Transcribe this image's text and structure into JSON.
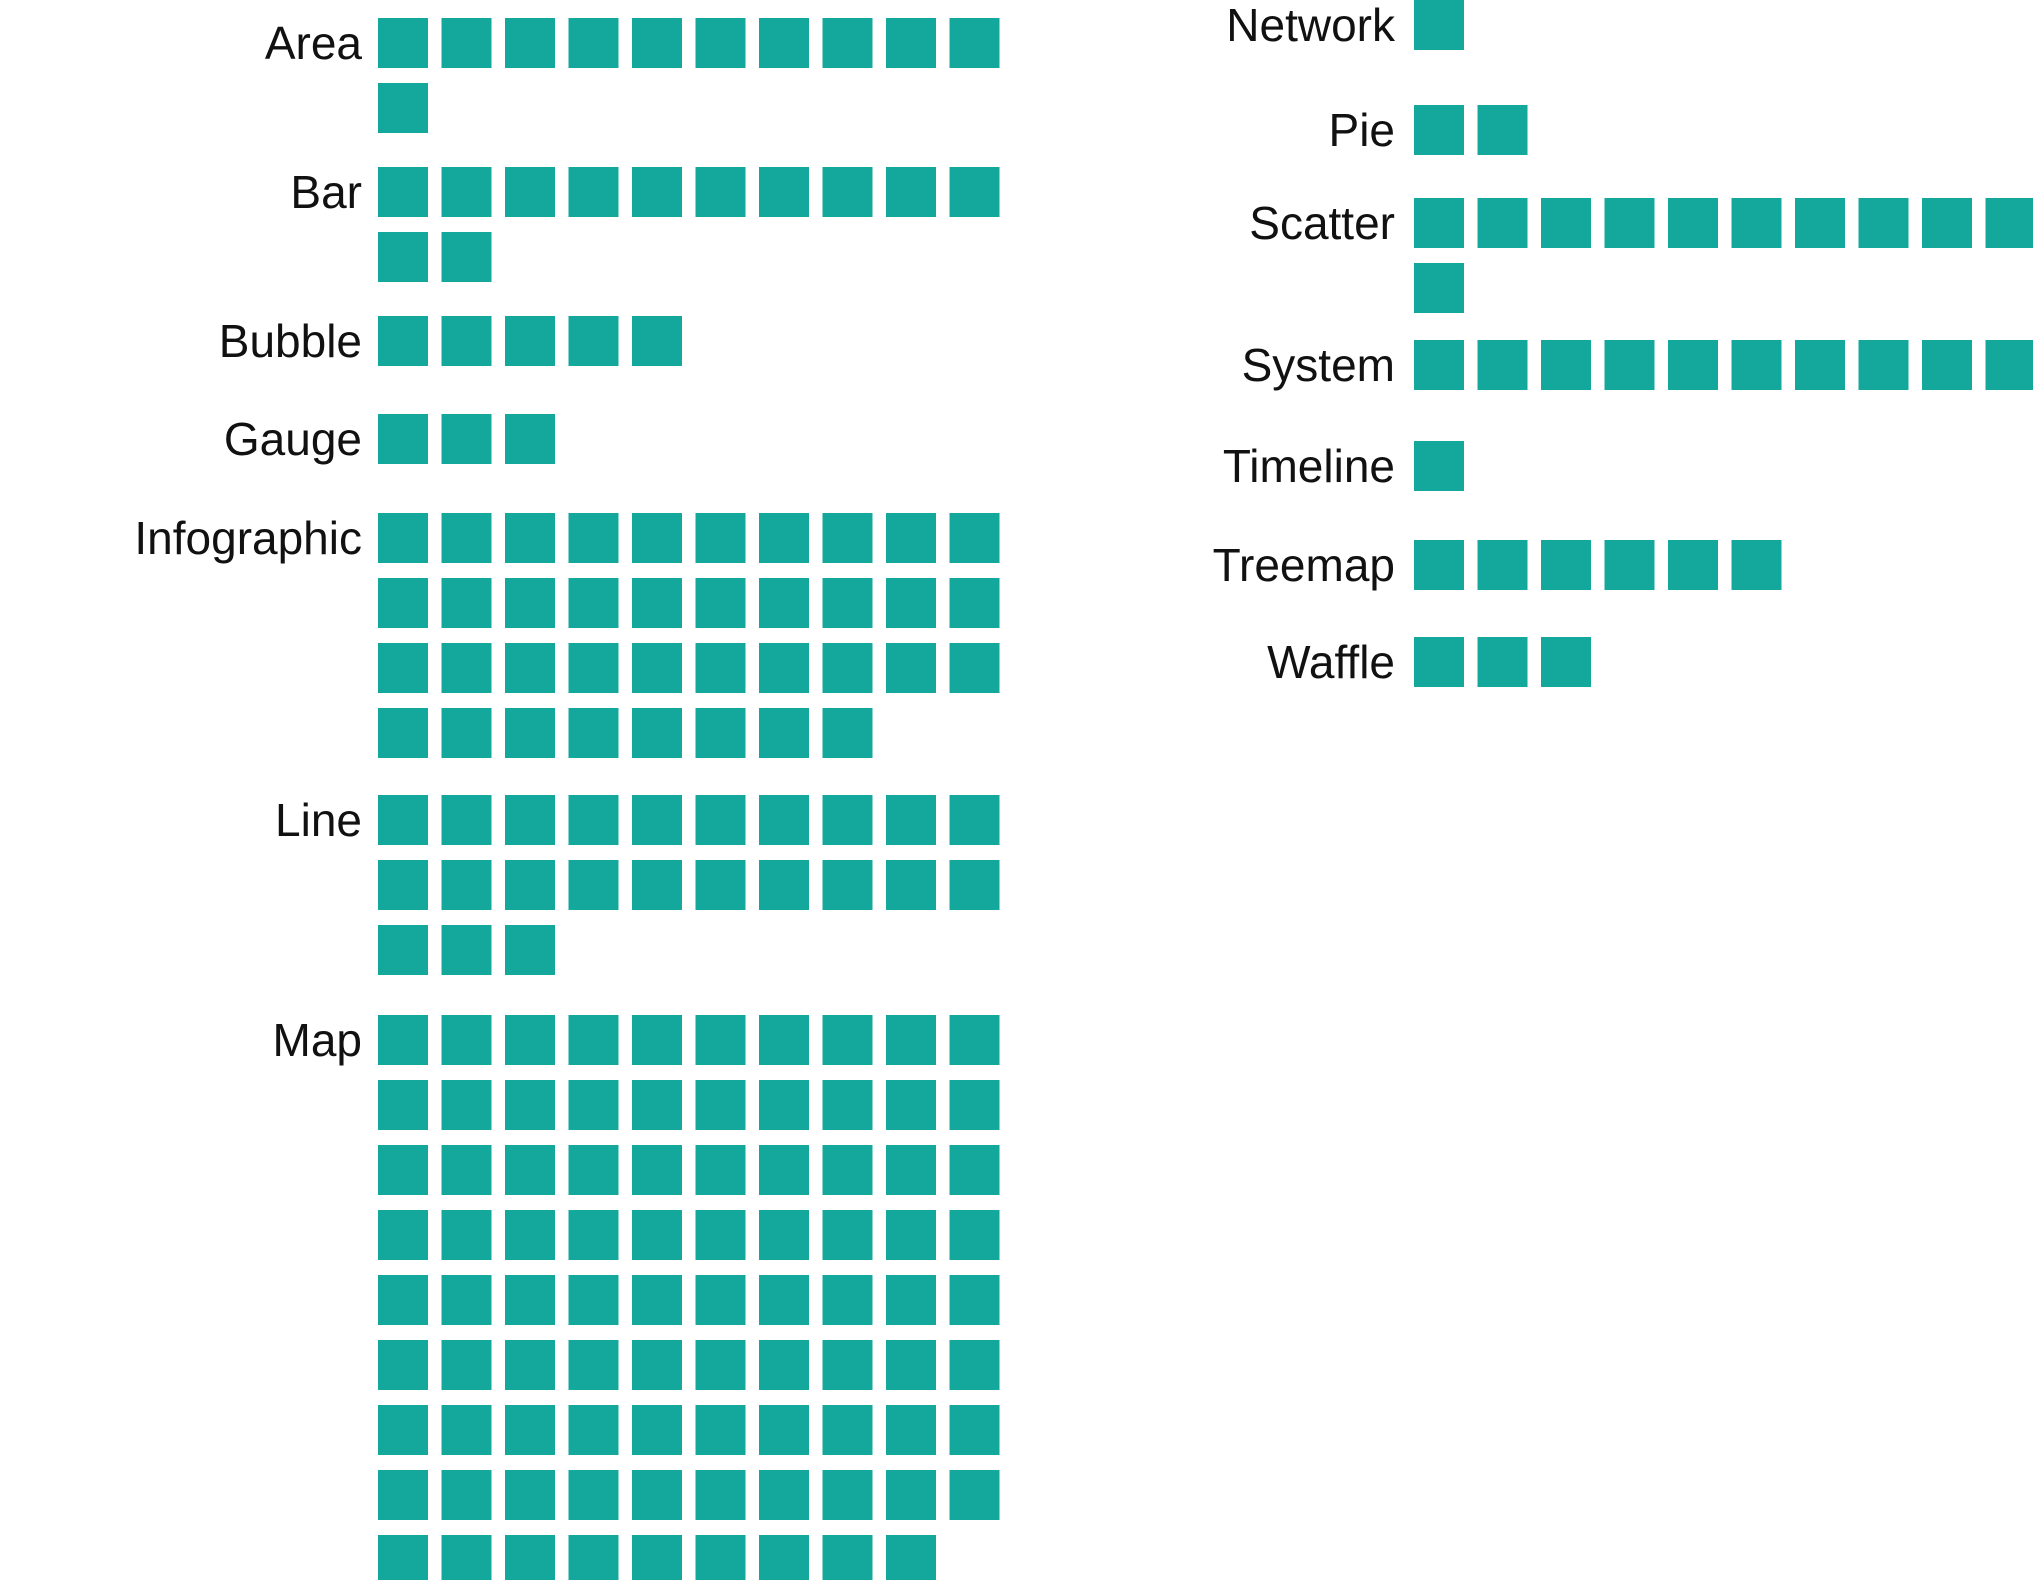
{
  "colors": {
    "square": "#14a89c",
    "label": "#111111",
    "background": "#ffffff"
  },
  "chart_data": {
    "type": "unit",
    "unit": "square",
    "per_row": 10,
    "categories": [
      "Area",
      "Bar",
      "Bubble",
      "Gauge",
      "Infographic",
      "Line",
      "Map",
      "Network",
      "Pie",
      "Scatter",
      "System",
      "Timeline",
      "Treemap",
      "Waffle"
    ],
    "values": [
      11,
      12,
      5,
      3,
      38,
      23,
      89,
      1,
      2,
      11,
      10,
      1,
      6,
      3
    ]
  }
}
